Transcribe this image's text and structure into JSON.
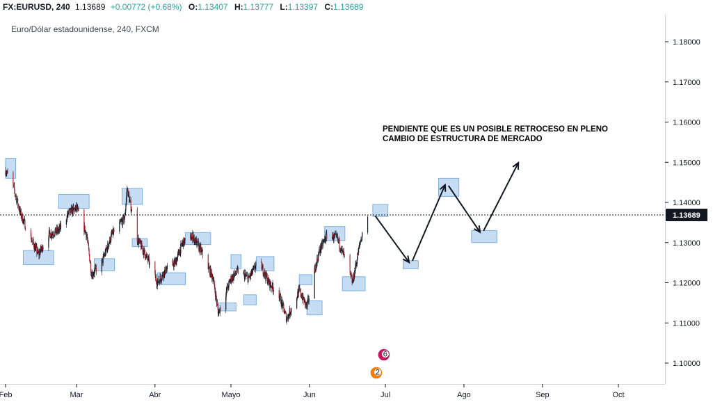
{
  "header": {
    "symbol": "FX:EURUSD, 240",
    "last": "1.13689",
    "change": "+0.00772 (+0.68%)",
    "open_label": "O:",
    "open": "1.13407",
    "high_label": "H:",
    "high": "1.13777",
    "low_label": "L:",
    "low": "1.13397",
    "close_label": "C:",
    "close": "1.13689"
  },
  "chart_data": {
    "type": "candlestick",
    "title": "",
    "subtitle": "Euro/Dólar estadounidense, 240, FXCM",
    "xlabel": "",
    "ylabel": "",
    "x_tick_labels": [
      "Feb",
      "Mar",
      "Abr",
      "Mayo",
      "Jun",
      "Jul",
      "Ago",
      "Sep",
      "Oct"
    ],
    "y_tick_values": [
      1.1,
      1.11,
      1.12,
      1.13,
      1.14,
      1.15,
      1.16,
      1.17,
      1.18
    ],
    "y_tick_labels": [
      "1.10000",
      "1.11000",
      "1.12000",
      "1.13000",
      "1.14000",
      "1.15000",
      "1.16000",
      "1.17000",
      "1.18000"
    ],
    "ylim": [
      1.0955,
      1.1895
    ],
    "current_price": 1.13689,
    "current_price_label": "1.13689",
    "grid": false,
    "price_path": [
      [
        "2019-02-01",
        1.148
      ],
      [
        "2019-02-04",
        1.144
      ],
      [
        "2019-02-07",
        1.137
      ],
      [
        "2019-02-11",
        1.131
      ],
      [
        "2019-02-14",
        1.127
      ],
      [
        "2019-02-18",
        1.132
      ],
      [
        "2019-02-22",
        1.133
      ],
      [
        "2019-02-26",
        1.1375
      ],
      [
        "2019-03-01",
        1.1385
      ],
      [
        "2019-03-05",
        1.132
      ],
      [
        "2019-03-07",
        1.122
      ],
      [
        "2019-03-11",
        1.125
      ],
      [
        "2019-03-15",
        1.132
      ],
      [
        "2019-03-20",
        1.136
      ],
      [
        "2019-03-21",
        1.1435
      ],
      [
        "2019-03-25",
        1.131
      ],
      [
        "2019-03-29",
        1.126
      ],
      [
        "2019-04-02",
        1.12
      ],
      [
        "2019-04-05",
        1.123
      ],
      [
        "2019-04-09",
        1.125
      ],
      [
        "2019-04-12",
        1.13
      ],
      [
        "2019-04-16",
        1.1315
      ],
      [
        "2019-04-20",
        1.127
      ],
      [
        "2019-04-24",
        1.121
      ],
      [
        "2019-04-26",
        1.1125
      ],
      [
        "2019-05-01",
        1.121
      ],
      [
        "2019-05-04",
        1.123
      ],
      [
        "2019-05-08",
        1.121
      ],
      [
        "2019-05-12",
        1.1255
      ],
      [
        "2019-05-16",
        1.12
      ],
      [
        "2019-05-20",
        1.117
      ],
      [
        "2019-05-23",
        1.111
      ],
      [
        "2019-05-28",
        1.118
      ],
      [
        "2019-05-31",
        1.114
      ],
      [
        "2019-06-03",
        1.123
      ],
      [
        "2019-06-05",
        1.128
      ],
      [
        "2019-06-08",
        1.132
      ],
      [
        "2019-06-12",
        1.131
      ],
      [
        "2019-06-15",
        1.126
      ],
      [
        "2019-06-18",
        1.12
      ],
      [
        "2019-06-21",
        1.13
      ],
      [
        "2019-06-24",
        1.1369
      ]
    ],
    "highlight_zones": [
      {
        "from": "2019-02-01",
        "to": "2019-02-05",
        "low": 1.146,
        "high": 1.151
      },
      {
        "from": "2019-02-08",
        "to": "2019-02-20",
        "low": 1.1245,
        "high": 1.128
      },
      {
        "from": "2019-02-22",
        "to": "2019-03-06",
        "low": 1.1385,
        "high": 1.142
      },
      {
        "from": "2019-03-08",
        "to": "2019-03-16",
        "low": 1.123,
        "high": 1.126
      },
      {
        "from": "2019-03-19",
        "to": "2019-03-27",
        "low": 1.1395,
        "high": 1.1435
      },
      {
        "from": "2019-03-23",
        "to": "2019-03-29",
        "low": 1.129,
        "high": 1.131
      },
      {
        "from": "2019-04-02",
        "to": "2019-04-13",
        "low": 1.1195,
        "high": 1.1225
      },
      {
        "from": "2019-04-13",
        "to": "2019-04-23",
        "low": 1.1295,
        "high": 1.1325
      },
      {
        "from": "2019-04-26",
        "to": "2019-05-03",
        "low": 1.113,
        "high": 1.115
      },
      {
        "from": "2019-05-01",
        "to": "2019-05-05",
        "low": 1.1235,
        "high": 1.127
      },
      {
        "from": "2019-05-06",
        "to": "2019-05-11",
        "low": 1.1145,
        "high": 1.117
      },
      {
        "from": "2019-05-11",
        "to": "2019-05-18",
        "low": 1.123,
        "high": 1.1265
      },
      {
        "from": "2019-05-28",
        "to": "2019-06-02",
        "low": 1.1195,
        "high": 1.122
      },
      {
        "from": "2019-05-31",
        "to": "2019-06-06",
        "low": 1.112,
        "high": 1.1155
      },
      {
        "from": "2019-06-07",
        "to": "2019-06-15",
        "low": 1.1305,
        "high": 1.134
      },
      {
        "from": "2019-06-14",
        "to": "2019-06-23",
        "low": 1.118,
        "high": 1.1215
      },
      {
        "from": "2019-06-26",
        "to": "2019-07-02",
        "low": 1.1365,
        "high": 1.1395
      },
      {
        "from": "2019-07-08",
        "to": "2019-07-14",
        "low": 1.1235,
        "high": 1.1255
      },
      {
        "from": "2019-07-22",
        "to": "2019-07-30",
        "low": 1.1415,
        "high": 1.146
      },
      {
        "from": "2019-08-04",
        "to": "2019-08-14",
        "low": 1.13,
        "high": 1.133
      }
    ],
    "projection_path": [
      [
        "2019-06-26",
        1.1375
      ],
      [
        "2019-07-11",
        1.1245
      ],
      [
        "2019-07-25",
        1.145
      ],
      [
        "2019-08-08",
        1.132
      ],
      [
        "2019-08-23",
        1.1505
      ]
    ],
    "annotation_lines": [
      "PENDIENTE QUE ES UN POSIBLE RETROCESO EN PLENO",
      "CAMBIO DE ESTRUCTURA DE MERCADO"
    ],
    "event_markers": [
      {
        "date": "2019-06-26",
        "label": "6"
      },
      {
        "date": "2019-06-23",
        "label": "2"
      }
    ],
    "colors": {
      "up": "#26a69a",
      "down": "#b22833",
      "wick": "#131722",
      "zone_fill": "#bbd6f0",
      "zone_stroke": "#7fb0e0",
      "price_tag": "#131722"
    }
  }
}
